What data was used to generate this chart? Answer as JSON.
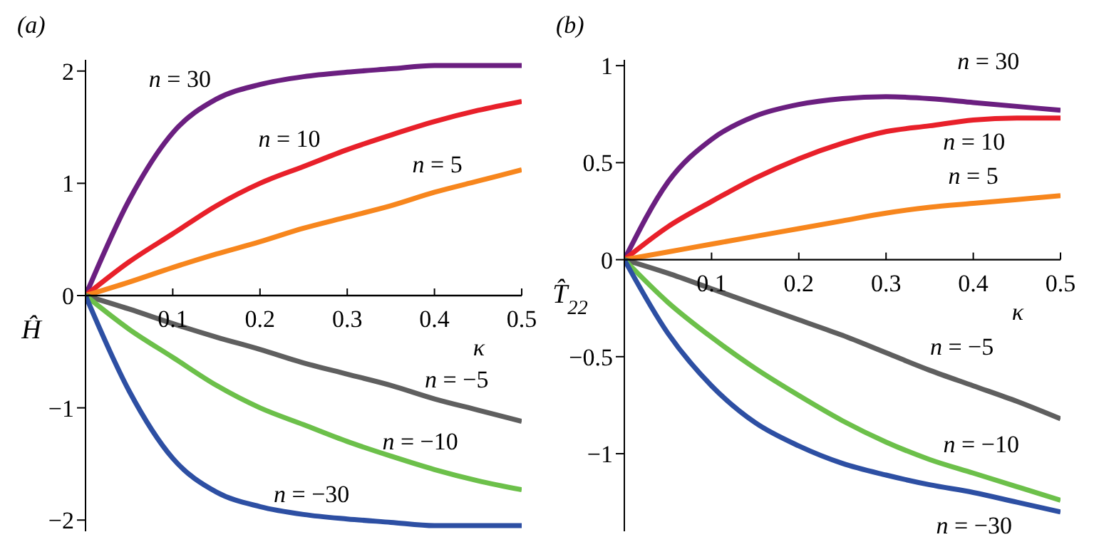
{
  "chart_data": [
    {
      "type": "line",
      "title": "(a)",
      "xlabel": "κ",
      "ylabel": "Ĥ",
      "x": [
        0,
        0.05,
        0.1,
        0.15,
        0.2,
        0.25,
        0.3,
        0.35,
        0.4,
        0.45,
        0.5
      ],
      "xlim": [
        0,
        0.5
      ],
      "xticks": [
        0.1,
        0.2,
        0.3,
        0.4,
        0.5
      ],
      "ylim": [
        -2.1,
        2.1
      ],
      "yticks": [
        {
          "value": -2,
          "label": "−2"
        },
        {
          "value": -1,
          "label": "−1"
        },
        0,
        1,
        2
      ],
      "marker": "none",
      "line_style": "solid",
      "series": [
        {
          "name": "n = 30",
          "color": "#6b1f80",
          "values": [
            0,
            0.85,
            1.45,
            1.75,
            1.88,
            1.95,
            1.99,
            2.02,
            2.05,
            2.05,
            2.05
          ]
        },
        {
          "name": "n = 10",
          "color": "#e8202a",
          "values": [
            0,
            0.3,
            0.55,
            0.8,
            1.0,
            1.15,
            1.3,
            1.43,
            1.55,
            1.65,
            1.73
          ]
        },
        {
          "name": "n = 5",
          "color": "#f7861d",
          "values": [
            0,
            0.12,
            0.25,
            0.37,
            0.48,
            0.6,
            0.7,
            0.8,
            0.92,
            1.02,
            1.12
          ]
        },
        {
          "name": "n = −5",
          "color": "#5f5f5f",
          "values": [
            0,
            -0.12,
            -0.25,
            -0.37,
            -0.48,
            -0.6,
            -0.7,
            -0.8,
            -0.92,
            -1.02,
            -1.12
          ]
        },
        {
          "name": "n = −10",
          "color": "#6cc04a",
          "values": [
            0,
            -0.3,
            -0.55,
            -0.8,
            -1.0,
            -1.15,
            -1.3,
            -1.43,
            -1.55,
            -1.65,
            -1.73
          ]
        },
        {
          "name": "n = −30",
          "color": "#2d4fa3",
          "values": [
            0,
            -0.85,
            -1.45,
            -1.75,
            -1.88,
            -1.95,
            -1.99,
            -2.02,
            -2.05,
            -2.05,
            -2.05
          ]
        }
      ]
    },
    {
      "type": "line",
      "title": "(b)",
      "xlabel": "κ",
      "ylabel": "T̂$_{22}$",
      "x": [
        0,
        0.05,
        0.1,
        0.15,
        0.2,
        0.25,
        0.3,
        0.35,
        0.4,
        0.45,
        0.5
      ],
      "xlim": [
        0,
        0.5
      ],
      "xticks": [
        0.1,
        0.2,
        0.3,
        0.4,
        0.5
      ],
      "ylim": [
        -1.4,
        1.03
      ],
      "yticks": [
        {
          "value": -1,
          "label": "−1"
        },
        {
          "value": -0.5,
          "label": "−0.5"
        },
        0,
        0.5,
        1
      ],
      "marker": "none",
      "line_style": "solid",
      "series": [
        {
          "name": "n = 30",
          "color": "#6b1f80",
          "values": [
            0,
            0.4,
            0.62,
            0.74,
            0.8,
            0.83,
            0.84,
            0.83,
            0.81,
            0.79,
            0.77
          ]
        },
        {
          "name": "n = 10",
          "color": "#e8202a",
          "values": [
            0,
            0.17,
            0.3,
            0.42,
            0.52,
            0.6,
            0.66,
            0.69,
            0.72,
            0.73,
            0.73
          ]
        },
        {
          "name": "n = 5",
          "color": "#f7861d",
          "values": [
            0,
            0.04,
            0.08,
            0.12,
            0.16,
            0.2,
            0.24,
            0.27,
            0.29,
            0.31,
            0.33
          ]
        },
        {
          "name": "n = −5",
          "color": "#5f5f5f",
          "values": [
            0,
            -0.07,
            -0.15,
            -0.23,
            -0.31,
            -0.39,
            -0.48,
            -0.57,
            -0.65,
            -0.73,
            -0.82
          ]
        },
        {
          "name": "n = −10",
          "color": "#6cc04a",
          "values": [
            0,
            -0.22,
            -0.4,
            -0.56,
            -0.7,
            -0.83,
            -0.94,
            -1.03,
            -1.1,
            -1.17,
            -1.24
          ]
        },
        {
          "name": "n = −30",
          "color": "#2d4fa3",
          "values": [
            0,
            -0.38,
            -0.65,
            -0.84,
            -0.96,
            -1.05,
            -1.11,
            -1.16,
            -1.2,
            -1.25,
            -1.3
          ]
        }
      ]
    }
  ]
}
